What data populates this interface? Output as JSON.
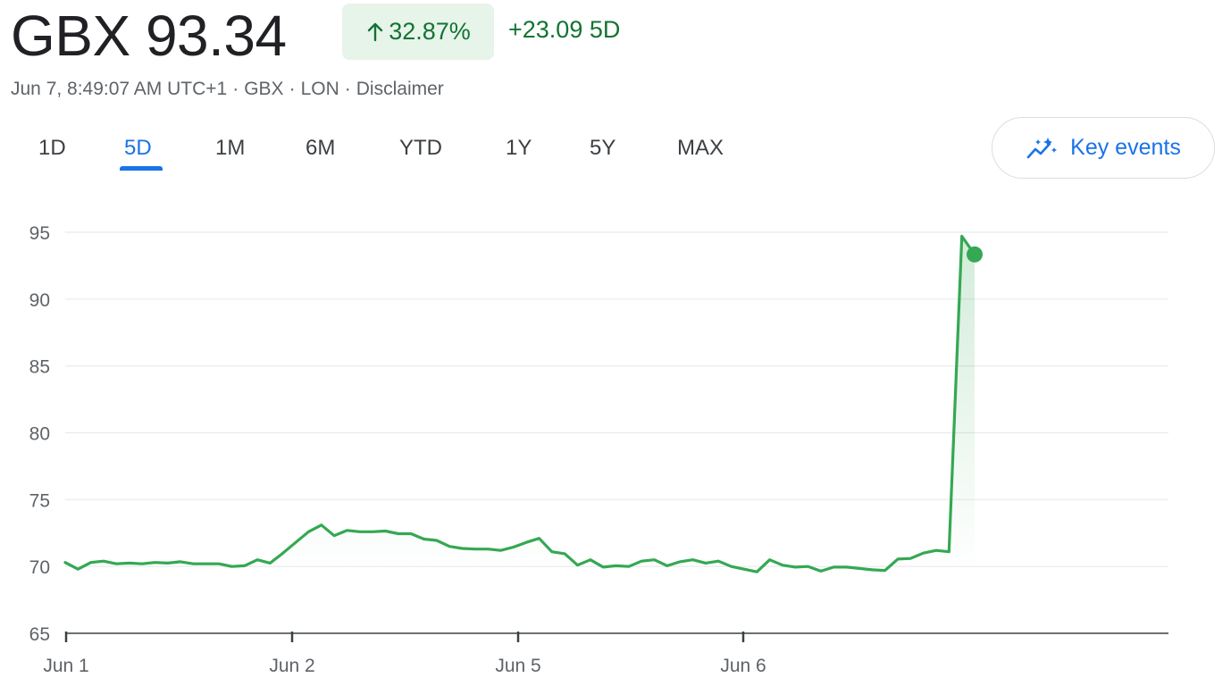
{
  "header": {
    "price": "GBX 93.34",
    "percent_change": "32.87%",
    "change": "+23.09 5D",
    "meta": [
      "Jun 7, 8:49:07 AM UTC+1",
      "GBX",
      "LON",
      "Disclaimer"
    ]
  },
  "tabs": [
    "1D",
    "5D",
    "1M",
    "6M",
    "YTD",
    "1Y",
    "5Y",
    "MAX"
  ],
  "active_tab": "5D",
  "key_events_label": "Key events",
  "colors": {
    "up": "#34a853",
    "up_text": "#137333",
    "accent": "#1a73e8",
    "grid": "#e8eaed"
  },
  "chart_data": {
    "type": "area",
    "title": "",
    "xlabel": "",
    "ylabel": "",
    "ylim": [
      65,
      95
    ],
    "yticks": [
      "95",
      "90",
      "85",
      "80",
      "75",
      "70",
      "65"
    ],
    "xticks": [
      "Jun 1",
      "Jun 2",
      "Jun 5",
      "Jun 6"
    ],
    "grid": true,
    "legend": "none",
    "series": [
      {
        "values": [
          70.3,
          69.8,
          70.3,
          70.4,
          70.2,
          70.25,
          70.2,
          70.3,
          70.25,
          70.35,
          70.2,
          70.2,
          70.2,
          70.0,
          70.05,
          70.5,
          70.25,
          71.0,
          71.8,
          72.6,
          73.1,
          72.3,
          72.7,
          72.6,
          72.6,
          72.65,
          72.45,
          72.45,
          72.05,
          71.95,
          71.5,
          71.35,
          71.3,
          71.3,
          71.2,
          71.45,
          71.8,
          72.1,
          71.1,
          70.95,
          70.1,
          70.5,
          69.95,
          70.05,
          70.0,
          70.4,
          70.5,
          70.05,
          70.35,
          70.5,
          70.25,
          70.4,
          70.0,
          69.8,
          69.6,
          70.5,
          70.1,
          69.95,
          70.0,
          69.65,
          69.95,
          69.95,
          69.85,
          69.75,
          69.7,
          70.55,
          70.6,
          71.0,
          71.2,
          71.1,
          94.7,
          93.34
        ]
      }
    ]
  }
}
